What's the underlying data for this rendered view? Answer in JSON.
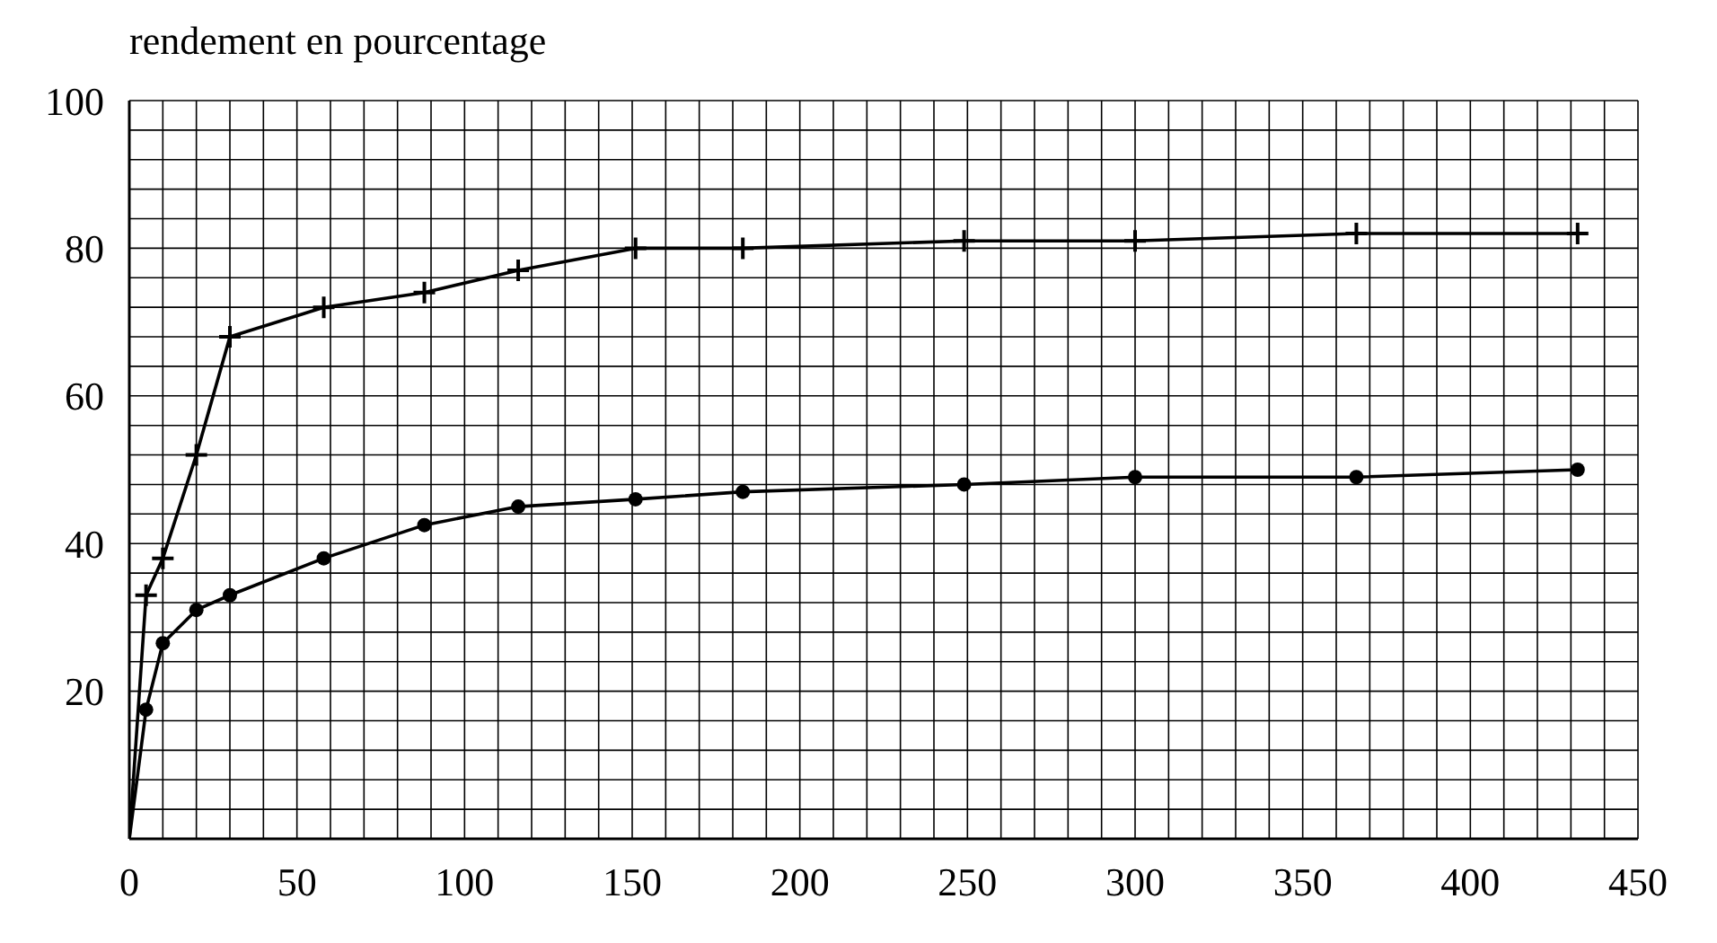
{
  "chart_data": {
    "type": "line",
    "ylabel": "rendement en pourcentage",
    "xlim": [
      0,
      450
    ],
    "ylim": [
      0,
      100
    ],
    "xticks": [
      0,
      {
        "value": 10,
        "label": null
      },
      {
        "value": 20,
        "label": null
      },
      {
        "value": 30,
        "label": null
      },
      {
        "value": 40,
        "label": null
      },
      50,
      {
        "value": 60,
        "label": null
      },
      {
        "value": 70,
        "label": null
      },
      {
        "value": 80,
        "label": null
      },
      {
        "value": 90,
        "label": null
      },
      100,
      {
        "value": 110,
        "label": null
      },
      {
        "value": 120,
        "label": null
      },
      {
        "value": 130,
        "label": null
      },
      {
        "value": 140,
        "label": null
      },
      150,
      {
        "value": 160,
        "label": null
      },
      {
        "value": 170,
        "label": null
      },
      {
        "value": 180,
        "label": null
      },
      {
        "value": 190,
        "label": null
      },
      200,
      {
        "value": 210,
        "label": null
      },
      {
        "value": 220,
        "label": null
      },
      {
        "value": 230,
        "label": null
      },
      {
        "value": 240,
        "label": null
      },
      250,
      {
        "value": 260,
        "label": null
      },
      {
        "value": 270,
        "label": null
      },
      {
        "value": 280,
        "label": null
      },
      {
        "value": 290,
        "label": null
      },
      300,
      {
        "value": 310,
        "label": null
      },
      {
        "value": 320,
        "label": null
      },
      {
        "value": 330,
        "label": null
      },
      {
        "value": 340,
        "label": null
      },
      350,
      {
        "value": 360,
        "label": null
      },
      {
        "value": 370,
        "label": null
      },
      {
        "value": 380,
        "label": null
      },
      {
        "value": 390,
        "label": null
      },
      400,
      {
        "value": 410,
        "label": null
      },
      {
        "value": 420,
        "label": null
      },
      {
        "value": 430,
        "label": null
      },
      {
        "value": 440,
        "label": null
      },
      450
    ],
    "yticks": [
      {
        "value": 0,
        "label": null
      },
      {
        "value": 4,
        "label": null
      },
      {
        "value": 8,
        "label": null
      },
      {
        "value": 12,
        "label": null
      },
      {
        "value": 16,
        "label": null
      },
      20,
      {
        "value": 24,
        "label": null
      },
      {
        "value": 28,
        "label": null
      },
      {
        "value": 32,
        "label": null
      },
      {
        "value": 36,
        "label": null
      },
      40,
      {
        "value": 44,
        "label": null
      },
      {
        "value": 48,
        "label": null
      },
      {
        "value": 52,
        "label": null
      },
      {
        "value": 56,
        "label": null
      },
      60,
      {
        "value": 64,
        "label": null
      },
      {
        "value": 68,
        "label": null
      },
      {
        "value": 72,
        "label": null
      },
      {
        "value": 76,
        "label": null
      },
      80,
      {
        "value": 84,
        "label": null
      },
      {
        "value": 88,
        "label": null
      },
      {
        "value": 92,
        "label": null
      },
      {
        "value": 96,
        "label": null
      },
      100
    ],
    "grid": true,
    "line_style": "solid",
    "series": [
      {
        "color": "#000000",
        "marker": "cross",
        "x": [
          0,
          5,
          10,
          20,
          30,
          58,
          88,
          116,
          151,
          183,
          249,
          300,
          366,
          432
        ],
        "values": [
          0,
          33,
          38,
          52,
          68,
          72,
          74,
          77,
          80,
          80,
          81,
          81,
          82,
          82
        ]
      },
      {
        "color": "#000000",
        "marker": "circle",
        "x": [
          0,
          5,
          10,
          20,
          30,
          58,
          88,
          116,
          151,
          183,
          249,
          300,
          366,
          432
        ],
        "values": [
          0,
          17.5,
          26.5,
          31,
          33,
          38,
          42.5,
          45,
          46,
          47,
          48,
          49,
          49,
          50
        ]
      }
    ]
  }
}
